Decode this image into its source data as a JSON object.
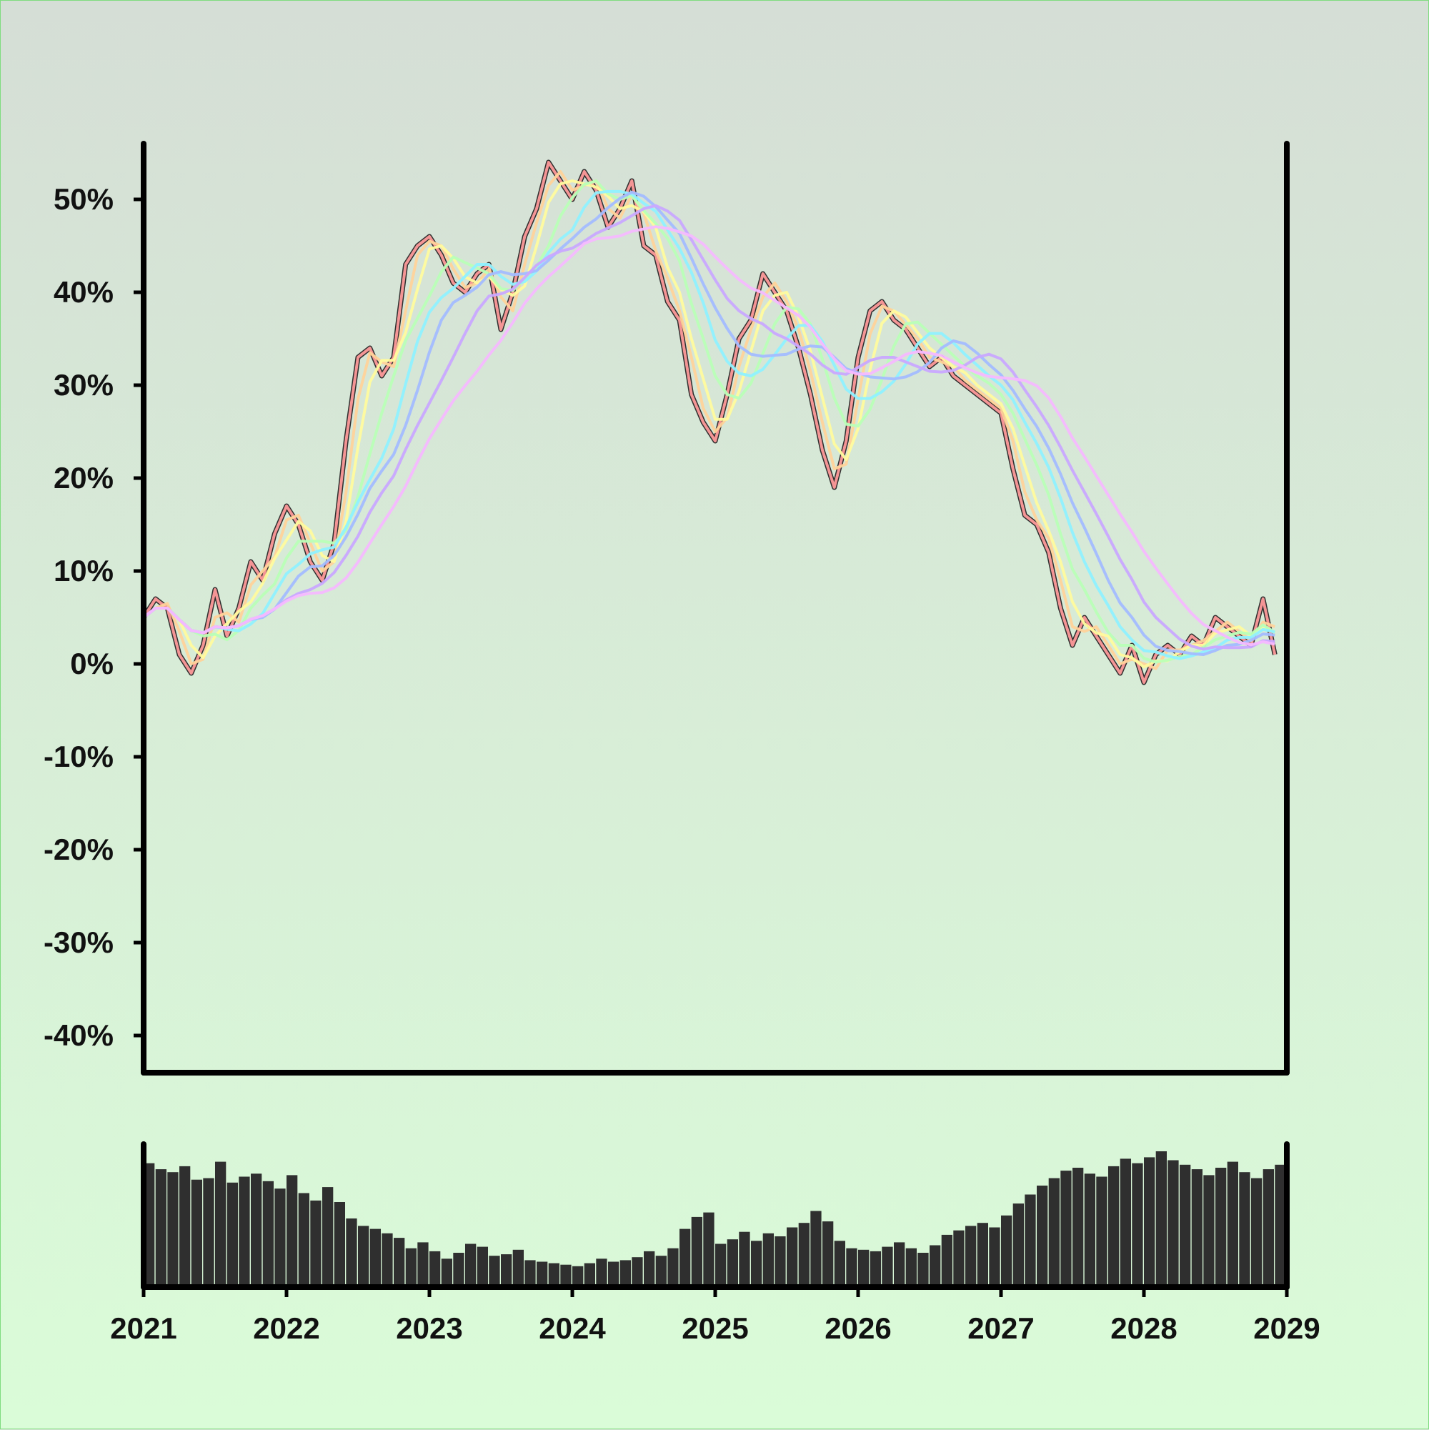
{
  "chart_data": {
    "type": "line",
    "title": "",
    "xlabel": "",
    "ylabel": "",
    "x_ticks": [
      "2021",
      "2022",
      "2023",
      "2024",
      "2025",
      "2026",
      "2027",
      "2028",
      "2029"
    ],
    "y_ticks": [
      "50%",
      "40%",
      "30%",
      "20%",
      "10%",
      "0%",
      "-10%",
      "-20%",
      "-30%",
      "-40%"
    ],
    "xlim": [
      "2021-01",
      "2029-01"
    ],
    "ylim": [
      -44,
      56
    ],
    "grid": false,
    "legend": "none",
    "price_series": {
      "color": "#2f2f2f",
      "points": [
        [
          "2021-01",
          5
        ],
        [
          "2021-02",
          7
        ],
        [
          "2021-03",
          6
        ],
        [
          "2021-04",
          1
        ],
        [
          "2021-05",
          -1
        ],
        [
          "2021-06",
          2
        ],
        [
          "2021-07",
          8
        ],
        [
          "2021-08",
          3
        ],
        [
          "2021-09",
          6
        ],
        [
          "2021-10",
          11
        ],
        [
          "2021-11",
          9
        ],
        [
          "2021-12",
          14
        ],
        [
          "2022-01",
          17
        ],
        [
          "2022-02",
          15
        ],
        [
          "2022-03",
          11
        ],
        [
          "2022-04",
          9
        ],
        [
          "2022-05",
          13
        ],
        [
          "2022-06",
          24
        ],
        [
          "2022-07",
          33
        ],
        [
          "2022-08",
          34
        ],
        [
          "2022-09",
          31
        ],
        [
          "2022-10",
          33
        ],
        [
          "2022-11",
          43
        ],
        [
          "2022-12",
          45
        ],
        [
          "2023-01",
          46
        ],
        [
          "2023-02",
          44
        ],
        [
          "2023-03",
          41
        ],
        [
          "2023-04",
          40
        ],
        [
          "2023-05",
          42
        ],
        [
          "2023-06",
          43
        ],
        [
          "2023-07",
          36
        ],
        [
          "2023-08",
          40
        ],
        [
          "2023-09",
          46
        ],
        [
          "2023-10",
          49
        ],
        [
          "2023-11",
          54
        ],
        [
          "2023-12",
          52
        ],
        [
          "2024-01",
          50
        ],
        [
          "2024-02",
          53
        ],
        [
          "2024-03",
          51
        ],
        [
          "2024-04",
          47
        ],
        [
          "2024-05",
          49
        ],
        [
          "2024-06",
          52
        ],
        [
          "2024-07",
          45
        ],
        [
          "2024-08",
          44
        ],
        [
          "2024-09",
          39
        ],
        [
          "2024-10",
          37
        ],
        [
          "2024-11",
          29
        ],
        [
          "2024-12",
          26
        ],
        [
          "2025-01",
          24
        ],
        [
          "2025-02",
          29
        ],
        [
          "2025-03",
          35
        ],
        [
          "2025-04",
          37
        ],
        [
          "2025-05",
          42
        ],
        [
          "2025-06",
          40
        ],
        [
          "2025-07",
          38
        ],
        [
          "2025-08",
          34
        ],
        [
          "2025-09",
          29
        ],
        [
          "2025-10",
          23
        ],
        [
          "2025-11",
          19
        ],
        [
          "2025-12",
          24
        ],
        [
          "2026-01",
          33
        ],
        [
          "2026-02",
          38
        ],
        [
          "2026-03",
          39
        ],
        [
          "2026-04",
          37
        ],
        [
          "2026-05",
          36
        ],
        [
          "2026-06",
          34
        ],
        [
          "2026-07",
          32
        ],
        [
          "2026-08",
          33
        ],
        [
          "2026-09",
          31
        ],
        [
          "2026-10",
          30
        ],
        [
          "2026-11",
          29
        ],
        [
          "2026-12",
          28
        ],
        [
          "2027-01",
          27
        ],
        [
          "2027-02",
          21
        ],
        [
          "2027-03",
          16
        ],
        [
          "2027-04",
          15
        ],
        [
          "2027-05",
          12
        ],
        [
          "2027-06",
          6
        ],
        [
          "2027-07",
          2
        ],
        [
          "2027-08",
          5
        ],
        [
          "2027-09",
          3
        ],
        [
          "2027-10",
          1
        ],
        [
          "2027-11",
          -1
        ],
        [
          "2027-12",
          2
        ],
        [
          "2028-01",
          -2
        ],
        [
          "2028-02",
          1
        ],
        [
          "2028-03",
          2
        ],
        [
          "2028-04",
          1
        ],
        [
          "2028-05",
          3
        ],
        [
          "2028-06",
          2
        ],
        [
          "2028-07",
          5
        ],
        [
          "2028-08",
          4
        ],
        [
          "2028-09",
          3
        ],
        [
          "2028-10",
          2
        ],
        [
          "2028-11",
          7
        ],
        [
          "2028-12",
          1
        ]
      ]
    },
    "moving_averages": [
      {
        "color": "#ff9b9b",
        "window": 1
      },
      {
        "color": "#ffd39a",
        "window": 2
      },
      {
        "color": "#fffb9e",
        "window": 3
      },
      {
        "color": "#b9ffb7",
        "window": 5
      },
      {
        "color": "#8ff1ff",
        "window": 7
      },
      {
        "color": "#a3bcff",
        "window": 9
      },
      {
        "color": "#c9a8ff",
        "window": 12
      },
      {
        "color": "#f6b9ff",
        "window": 16
      }
    ],
    "volume": {
      "color": "#2f2f2f",
      "values": [
        83,
        79,
        77,
        81,
        72,
        73,
        84,
        70,
        74,
        76,
        71,
        66,
        75,
        63,
        58,
        67,
        57,
        46,
        41,
        39,
        36,
        33,
        26,
        30,
        24,
        19,
        23,
        29,
        27,
        21,
        22,
        25,
        18,
        17,
        16,
        15,
        14,
        16,
        19,
        17,
        18,
        20,
        24,
        21,
        26,
        39,
        47,
        50,
        29,
        32,
        37,
        31,
        36,
        34,
        40,
        43,
        51,
        44,
        31,
        26,
        25,
        24,
        27,
        30,
        26,
        23,
        28,
        35,
        38,
        41,
        43,
        40,
        48,
        56,
        62,
        68,
        73,
        78,
        80,
        76,
        74,
        81,
        86,
        83,
        87,
        91,
        85,
        82,
        79,
        75,
        80,
        84,
        77,
        73,
        79,
        82
      ]
    }
  }
}
